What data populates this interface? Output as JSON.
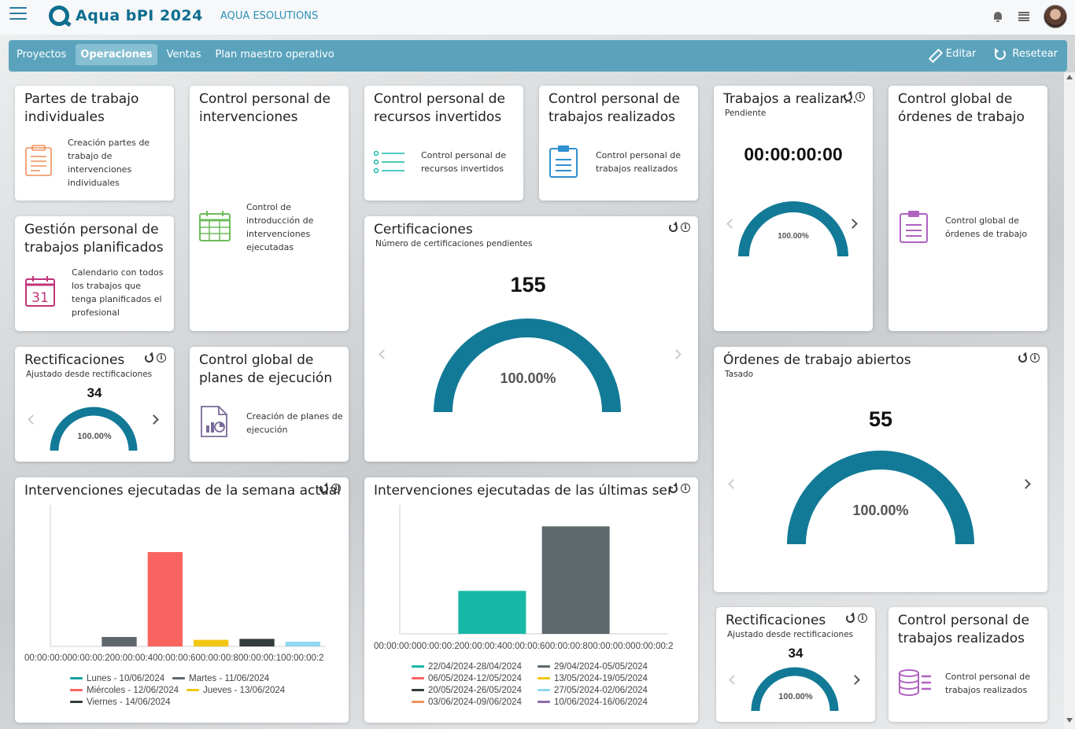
{
  "app": {
    "title": "Aqua bPI 2024",
    "company": "AQUA ESOLUTIONS"
  },
  "nav": {
    "items": [
      {
        "label": "Proyectos",
        "active": false
      },
      {
        "label": "Operaciones",
        "active": true
      },
      {
        "label": "Ventas",
        "active": false
      },
      {
        "label": "Plan maestro operativo",
        "active": false
      }
    ],
    "edit_label": "Editar",
    "reset_label": "Resetear"
  },
  "colors": {
    "accent": "#5ba3bd",
    "gauge": "#127a96"
  },
  "cards": {
    "partes": {
      "title": "Partes de trabajo individuales",
      "desc": "Creación partes de trabajo de intervenciones individuales",
      "icon": "document-list-icon"
    },
    "control_interv": {
      "title": "Control personal de intervenciones",
      "desc": "Control de introducción de intervenciones ejecutadas",
      "icon": "calendar-grid-icon"
    },
    "recursos": {
      "title": "Control personal de recursos invertidos",
      "desc": "Control personal de recursos invertidos",
      "icon": "bullet-list-icon"
    },
    "trabajos_realizados": {
      "title": "Control personal de trabajos realizados",
      "desc": "Control personal de trabajos realizados",
      "icon": "clipboard-icon"
    },
    "trabajos_realizar": {
      "title": "Trabajos a realizar...",
      "sub": "Pendiente",
      "value": "00:00:00:00",
      "pct": "100.00%"
    },
    "ordenes_global": {
      "title": "Control global de órdenes de trabajo",
      "desc": "Control global de órdenes de trabajo",
      "icon": "clipboard-list-icon"
    },
    "gestion": {
      "title": "Gestión personal de trabajos planificados",
      "desc": "Calendario con todos los trabajos que tenga planificados el profesional",
      "icon": "calendar-31-icon",
      "icon_text": "31"
    },
    "certificaciones": {
      "title": "Certificaciones",
      "sub": "Número de certificaciones pendientes",
      "value": "155",
      "pct": "100.00%"
    },
    "rect1": {
      "title": "Rectificaciones",
      "sub": "Ajustado desde rectificaciones",
      "value": "34",
      "pct": "100.00%"
    },
    "planes": {
      "title": "Control global de planes de ejecución",
      "desc": "Creación de planes de ejecución",
      "icon": "chart-document-icon"
    },
    "ordenes_abiertos": {
      "title": "Órdenes de trabajo abiertos",
      "sub": "Tasado",
      "value": "55",
      "pct": "100.00%"
    },
    "rect2": {
      "title": "Rectificaciones",
      "sub": "Ajustado desde rectificaciones",
      "value": "34",
      "pct": "100.00%"
    },
    "trabajos_realizados2": {
      "title": "Control personal de trabajos realizados",
      "desc": "Control personal de trabajos realizados",
      "icon": "database-list-icon"
    },
    "semana_actual": {
      "title": "Intervenciones ejecutadas de la semana actual"
    },
    "ultimas_semanas": {
      "title": "Intervenciones ejecutadas de las últimas sema..."
    }
  },
  "chart_data": [
    {
      "type": "bar",
      "title": "Intervenciones ejecutadas de la semana actual",
      "x_tick_labels": [
        "00:00:00:00",
        "0:00:00:2",
        "00:00:00:4",
        "00:00:00:6",
        "00:00:00:8",
        "00:00:00:1",
        "00:00:00:2"
      ],
      "series": [
        {
          "name": "Lunes - 10/06/2024",
          "value": 0,
          "color": "#17a2a2"
        },
        {
          "name": "Martes - 11/06/2024",
          "value": 1,
          "color": "#5e686c"
        },
        {
          "name": "Miércoles - 12/06/2024",
          "value": 10,
          "color": "#f96461"
        },
        {
          "name": "Jueves - 13/06/2024",
          "value": 0.7,
          "color": "#f2c716"
        },
        {
          "name": "Viernes - 14/06/2024",
          "value": 0.8,
          "color": "#333b3d"
        },
        {
          "name": "",
          "value": 0.5,
          "color": "#8fd8ef"
        }
      ],
      "ylim": [
        0,
        15
      ]
    },
    {
      "type": "bar",
      "title": "Intervenciones ejecutadas de las últimas sema...",
      "x_tick_labels": [
        "00:00:00:00",
        "0:00:00:2",
        "00:00:00:4",
        "00:00:00:6",
        "00:00:00:8",
        "00:00:00:0",
        "00:00:00:2"
      ],
      "series": [
        {
          "name": "22/04/2024-28/04/2024",
          "value": 0,
          "color": "#17b8a6"
        },
        {
          "name": "29/04/2024-05/05/2024",
          "value": 5,
          "color": "#5e686c"
        },
        {
          "name": "06/05/2024-12/05/2024",
          "value": 12.5,
          "color": "#f96461"
        },
        {
          "name": "13/05/2024-19/05/2024",
          "value": 0,
          "color": "#f2c716"
        },
        {
          "name": "20/05/2024-26/05/2024",
          "value": 0,
          "color": "#333b3d"
        },
        {
          "name": "27/05/2024-02/06/2024",
          "value": 0,
          "color": "#8fd8ef"
        },
        {
          "name": "03/06/2024-09/06/2024",
          "value": 0,
          "color": "#f0915a"
        },
        {
          "name": "10/06/2024-16/06/2024",
          "value": 0,
          "color": "#8e6aa8"
        }
      ],
      "bars": [
        {
          "value": 5,
          "color": "#17b8a6"
        },
        {
          "value": 12.5,
          "color": "#5e686c"
        }
      ],
      "ylim": [
        0,
        15
      ]
    }
  ]
}
